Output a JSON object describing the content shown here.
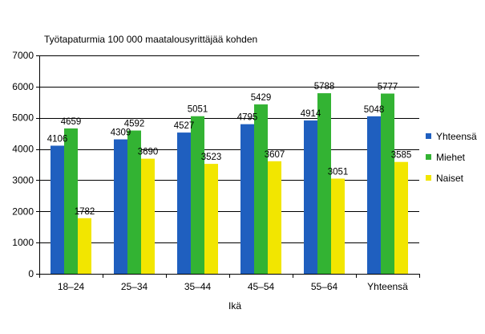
{
  "chart_data": {
    "type": "bar",
    "title": "Työtapaturmia 100 000 maatalousyrittäjää kohden",
    "xlabel": "Ikä",
    "ylabel": "",
    "ylim": [
      0,
      7000
    ],
    "yticks": [
      0,
      1000,
      2000,
      3000,
      4000,
      5000,
      6000,
      7000
    ],
    "grid": "horizontal",
    "legend_position": "right",
    "categories": [
      "18–24",
      "25–34",
      "35–44",
      "45–54",
      "55–64",
      "Yhteensä"
    ],
    "series": [
      {
        "name": "Yhteensä",
        "color": "#1f5fbf",
        "values": [
          4106,
          4309,
          4527,
          4795,
          4914,
          5048
        ]
      },
      {
        "name": "Miehet",
        "color": "#33b333",
        "values": [
          4659,
          4592,
          5051,
          5429,
          5788,
          5777
        ]
      },
      {
        "name": "Naiset",
        "color": "#f2e600",
        "values": [
          1782,
          3690,
          3523,
          3607,
          3051,
          3585
        ]
      }
    ]
  }
}
